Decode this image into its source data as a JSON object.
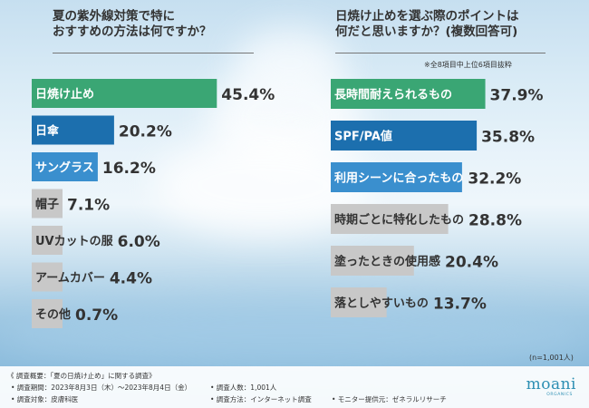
{
  "colors": {
    "first": "#3aa674",
    "second": "#1c6fae",
    "third": "#3a8fce",
    "rest": "#c8c8c8",
    "label_white": "#ffffff",
    "label_dark": "#333333"
  },
  "chart_data": [
    {
      "type": "bar",
      "orientation": "horizontal",
      "title": "夏の紫外線対策で特に\nおすすめの方法は何ですか？",
      "categories": [
        "日焼け止め",
        "日傘",
        "サングラス",
        "帽子",
        "UVカットの服",
        "アームカバー",
        "その他"
      ],
      "values": [
        45.4,
        20.2,
        16.2,
        7.1,
        6.0,
        4.4,
        0.7
      ],
      "value_labels": [
        "45.4%",
        "20.2%",
        "16.2%",
        "7.1%",
        "6.0%",
        "4.4%",
        "0.7%"
      ],
      "xlim": [
        0,
        100
      ],
      "grid": false,
      "legend": "none"
    },
    {
      "type": "bar",
      "orientation": "horizontal",
      "title": "日焼け止めを選ぶ際のポイントは\n何だと思いますか？(複数回答可)",
      "note": "※全8項目中上位6項目抜粋",
      "categories": [
        "長時間耐えられるもの",
        "SPF/PA値",
        "利用シーンに合ったもの",
        "時期ごとに特化したもの",
        "塗ったときの使用感",
        "落としやすいもの"
      ],
      "values": [
        37.9,
        35.8,
        32.2,
        28.8,
        20.4,
        13.7
      ],
      "value_labels": [
        "37.9%",
        "35.8%",
        "32.2%",
        "28.8%",
        "20.4%",
        "13.7%"
      ],
      "sample_note": "(n=1,001人)",
      "xlim": [
        0,
        100
      ],
      "grid": false,
      "legend": "none"
    }
  ],
  "footer": {
    "heading": "《 調査概要：「夏の日焼け止め」に関する調査》",
    "period": "• 調査期間：2023年8月3日（木）〜2023年8月4日（金）",
    "target": "• 調査対象：皮膚科医",
    "count": "• 調査人数：1,001人",
    "method": "• 調査方法：インターネット調査",
    "provider": "• モニター提供元：ゼネラルリサーチ"
  },
  "brand": {
    "logo": "moani",
    "logo_sub": "ORGANICS"
  }
}
